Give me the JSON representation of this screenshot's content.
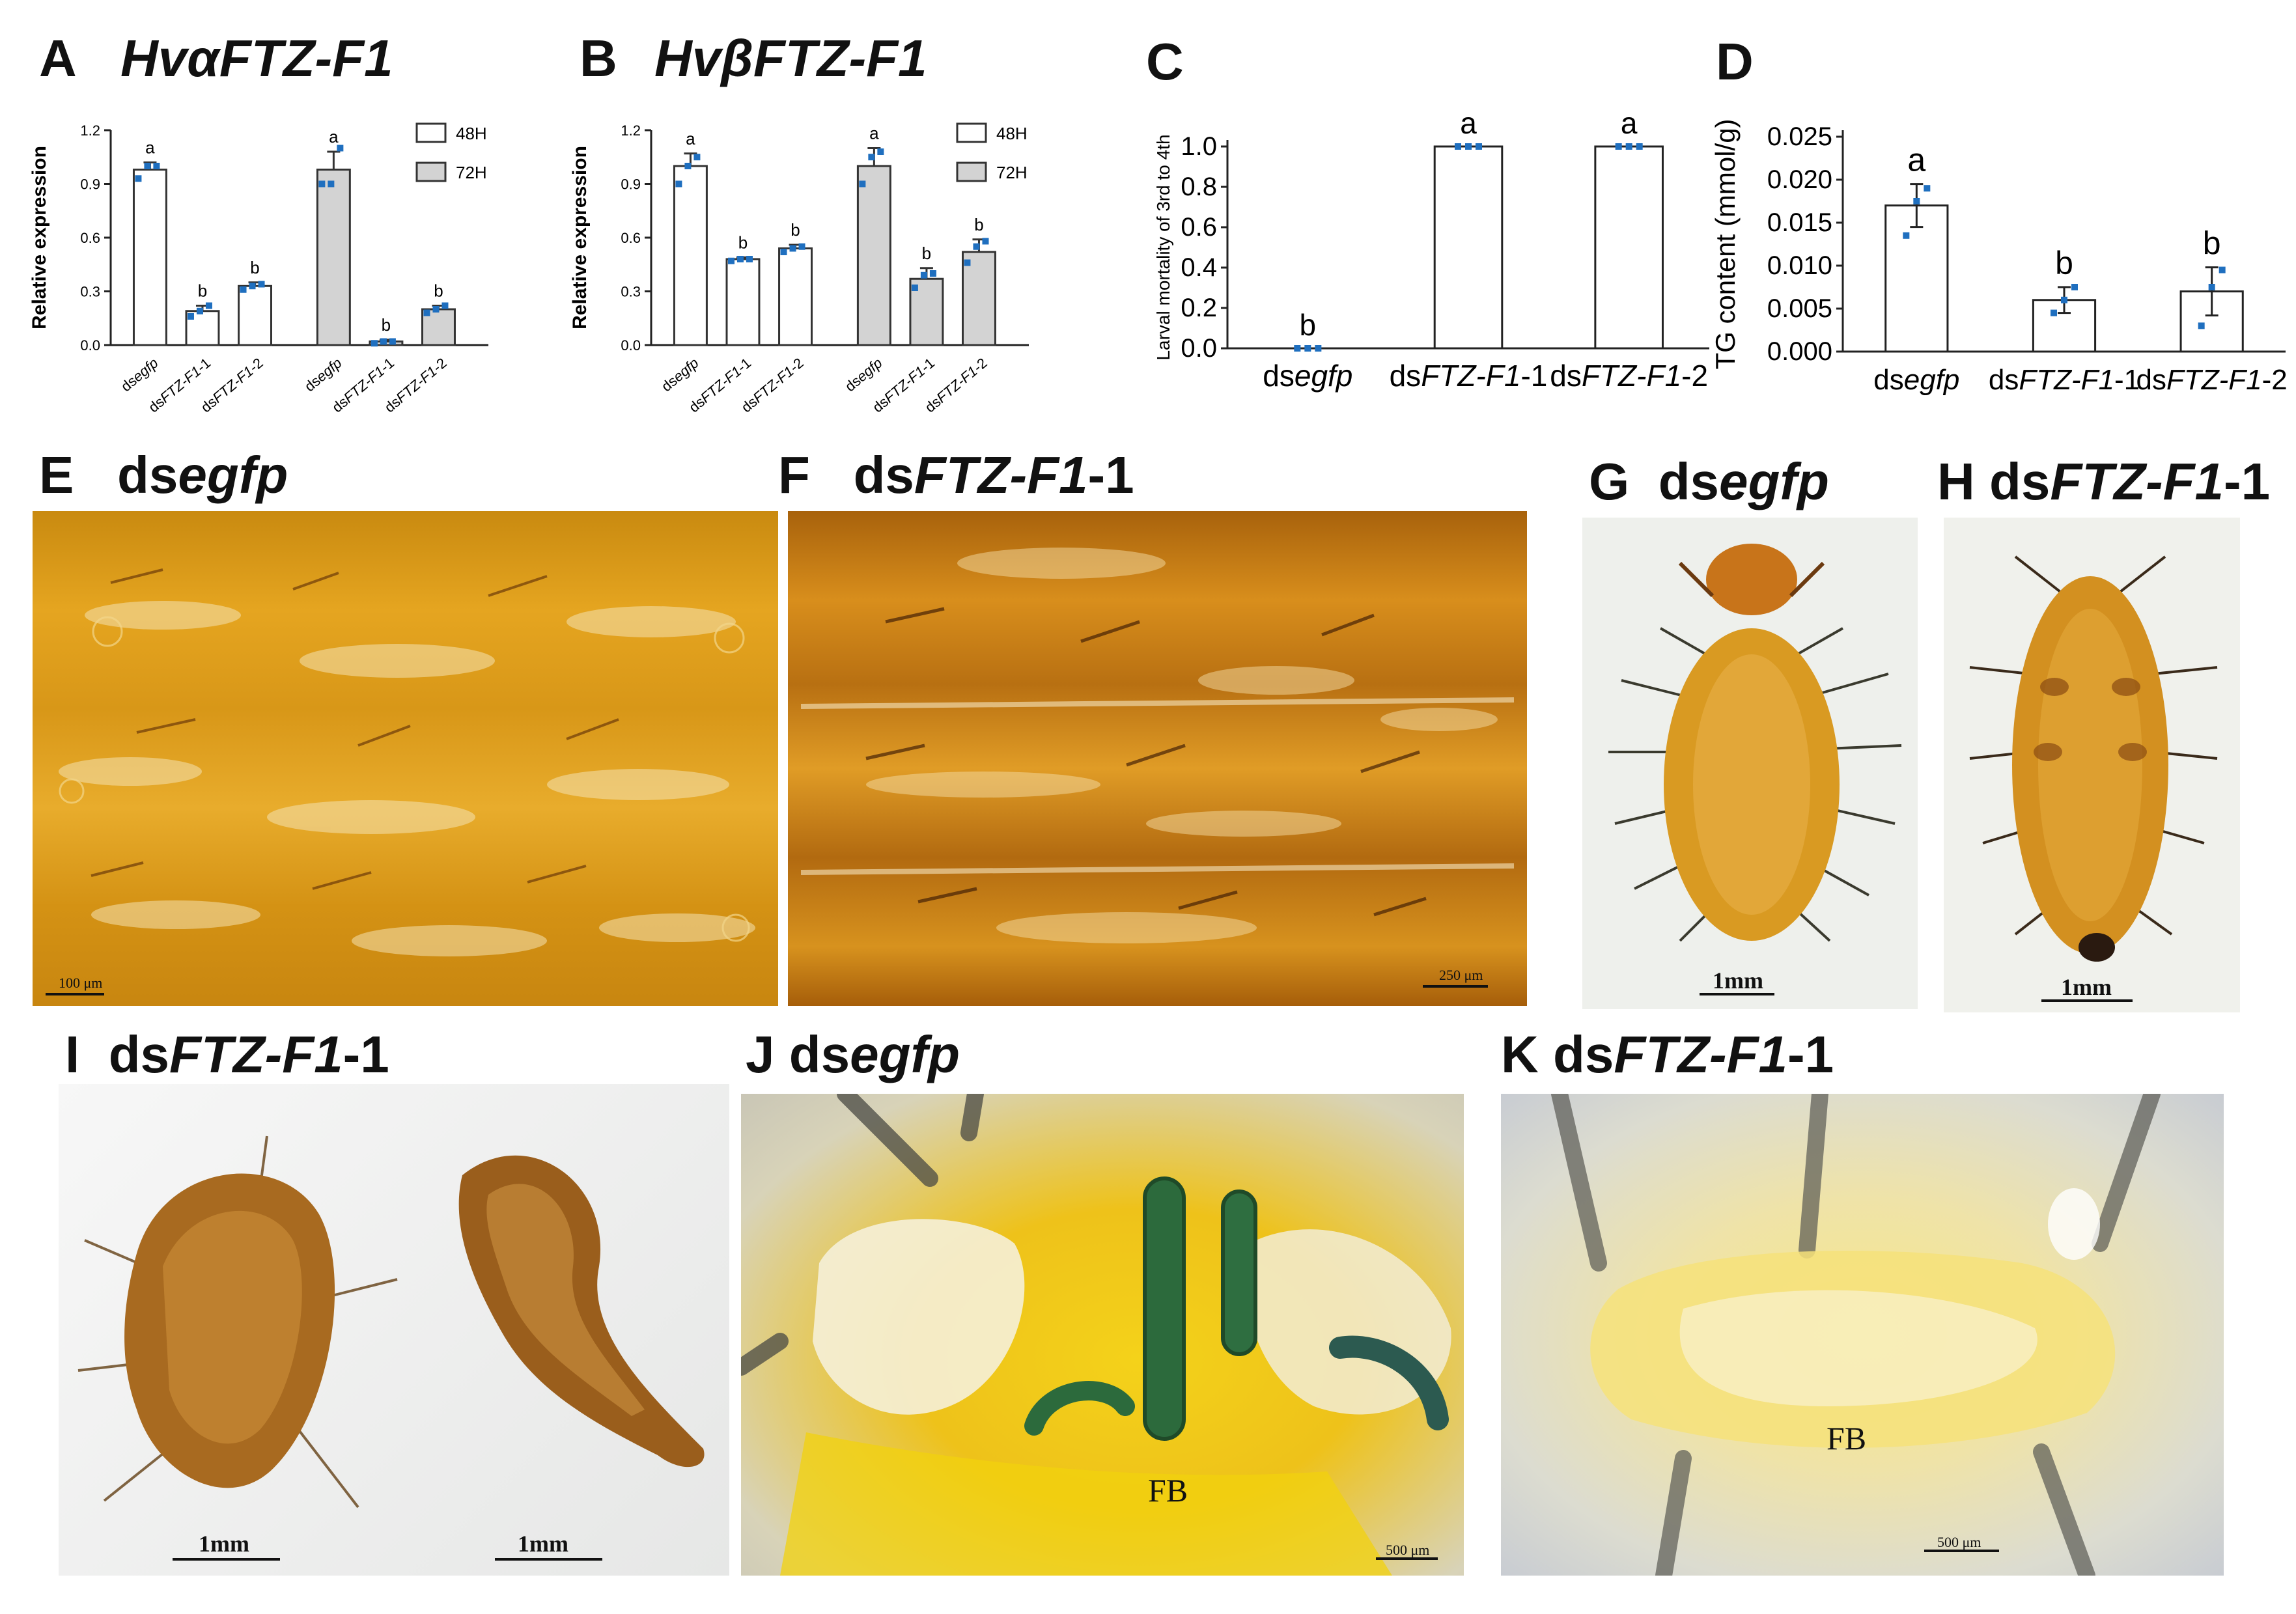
{
  "panels": {
    "A": {
      "letter": "A",
      "title": "HvαFTZ-F1"
    },
    "B": {
      "letter": "B",
      "title": "HvβFTZ-F1"
    },
    "C": {
      "letter": "C"
    },
    "D": {
      "letter": "D"
    },
    "E": {
      "letter": "E",
      "prefix": "ds",
      "name": "egfp",
      "suffix": "",
      "scale": "100 μm"
    },
    "F": {
      "letter": "F",
      "prefix": "ds",
      "name": "FTZ-F1",
      "suffix": "-1",
      "scale": "250 μm"
    },
    "G": {
      "letter": "G",
      "prefix": "ds",
      "name": "egfp",
      "suffix": "",
      "scale": "1mm"
    },
    "H": {
      "letter": "H",
      "prefix": "ds",
      "name": "FTZ-F1",
      "suffix": "-1",
      "scale": "1mm"
    },
    "I": {
      "letter": "I",
      "prefix": "ds",
      "name": "FTZ-F1",
      "suffix": "-1",
      "scale_left": "1mm",
      "scale_right": "1mm"
    },
    "J": {
      "letter": "J",
      "prefix": "ds",
      "name": "egfp",
      "suffix": "",
      "tissue_label": "FB",
      "scale": "500 μm"
    },
    "K": {
      "letter": "K",
      "prefix": "ds",
      "name": "FTZ-F1",
      "suffix": "-1",
      "tissue_label": "FB",
      "scale": "500 μm"
    }
  },
  "chart_data": [
    {
      "panel": "A",
      "type": "bar",
      "ylabel": "Relative expression",
      "ylim": [
        0,
        1.2
      ],
      "yticks": [
        "0.0",
        "0.3",
        "0.6",
        "0.9",
        "1.2"
      ],
      "categories": [
        "dsegfp",
        "dsFTZ-F1-1",
        "dsFTZ-F1-2",
        "dsegfp",
        "dsFTZ-F1-1",
        "dsFTZ-F1-2"
      ],
      "series": [
        {
          "name": "48H",
          "color": "#ffffff",
          "values": [
            0.98,
            0.19,
            0.33,
            null,
            null,
            null
          ],
          "errors": [
            0.04,
            0.03,
            0.02,
            null,
            null,
            null
          ],
          "points": [
            [
              0.93,
              1.0,
              1.0
            ],
            [
              0.16,
              0.19,
              0.22
            ],
            [
              0.31,
              0.33,
              0.34
            ],
            null,
            null,
            null
          ],
          "letters": [
            "a",
            "b",
            "b",
            null,
            null,
            null
          ]
        },
        {
          "name": "72H",
          "color": "#d3d3d3",
          "values": [
            null,
            null,
            null,
            0.98,
            0.02,
            0.2
          ],
          "errors": [
            null,
            null,
            null,
            0.1,
            0.01,
            0.02
          ],
          "points": [
            null,
            null,
            null,
            [
              0.9,
              0.9,
              1.1
            ],
            [
              0.01,
              0.02,
              0.02
            ],
            [
              0.18,
              0.2,
              0.22
            ]
          ],
          "letters": [
            null,
            null,
            null,
            "a",
            "b",
            "b"
          ]
        }
      ],
      "legend": "top-right"
    },
    {
      "panel": "B",
      "type": "bar",
      "ylabel": "Relative expression",
      "ylim": [
        0,
        1.2
      ],
      "yticks": [
        "0.0",
        "0.3",
        "0.6",
        "0.9",
        "1.2"
      ],
      "categories": [
        "dsegfp",
        "dsFTZ-F1-1",
        "dsFTZ-F1-2",
        "dsegfp",
        "dsFTZ-F1-1",
        "dsFTZ-F1-2"
      ],
      "series": [
        {
          "name": "48H",
          "color": "#ffffff",
          "values": [
            1.0,
            0.48,
            0.54,
            null,
            null,
            null
          ],
          "errors": [
            0.07,
            0.01,
            0.02,
            null,
            null,
            null
          ],
          "points": [
            [
              0.9,
              1.0,
              1.05
            ],
            [
              0.47,
              0.48,
              0.48
            ],
            [
              0.52,
              0.54,
              0.55
            ],
            null,
            null,
            null
          ],
          "letters": [
            "a",
            "b",
            "b",
            null,
            null,
            null
          ]
        },
        {
          "name": "72H",
          "color": "#d3d3d3",
          "values": [
            null,
            null,
            null,
            1.0,
            0.37,
            0.52
          ],
          "errors": [
            null,
            null,
            null,
            0.1,
            0.06,
            0.07
          ],
          "points": [
            null,
            null,
            null,
            [
              0.9,
              1.05,
              1.08
            ],
            [
              0.32,
              0.39,
              0.4
            ],
            [
              0.46,
              0.55,
              0.58
            ]
          ],
          "letters": [
            null,
            null,
            null,
            "a",
            "b",
            "b"
          ]
        }
      ],
      "legend": "top-right"
    },
    {
      "panel": "C",
      "type": "bar",
      "ylabel": "Larval  mortality of 3rd to 4th",
      "ylim": [
        0,
        1.0
      ],
      "yticks": [
        "0.0",
        "0.2",
        "0.4",
        "0.6",
        "0.8",
        "1.0"
      ],
      "categories": [
        "dsegfp",
        "dsFTZ-F1-1",
        "dsFTZ-F1-2"
      ],
      "values": [
        0.0,
        1.0,
        1.0
      ],
      "errors": [
        0,
        0,
        0
      ],
      "points": [
        [
          0,
          0,
          0
        ],
        [
          1,
          1,
          1
        ],
        [
          1,
          1,
          1
        ]
      ],
      "letters": [
        "b",
        "a",
        "a"
      ]
    },
    {
      "panel": "D",
      "type": "bar",
      "ylabel": "TG content (mmol/g)",
      "ylim": [
        0,
        0.025
      ],
      "yticks": [
        "0.000",
        "0.005",
        "0.010",
        "0.015",
        "0.020",
        "0.025"
      ],
      "categories": [
        "dsegfp",
        "dsFTZ-F1-1",
        "dsFTZ-F1-2"
      ],
      "values": [
        0.017,
        0.006,
        0.007
      ],
      "errors": [
        0.0025,
        0.0015,
        0.0028
      ],
      "points": [
        [
          0.0135,
          0.0175,
          0.019
        ],
        [
          0.0045,
          0.006,
          0.0075
        ],
        [
          0.003,
          0.0075,
          0.0095
        ]
      ],
      "letters": [
        "a",
        "b",
        "b"
      ]
    }
  ]
}
